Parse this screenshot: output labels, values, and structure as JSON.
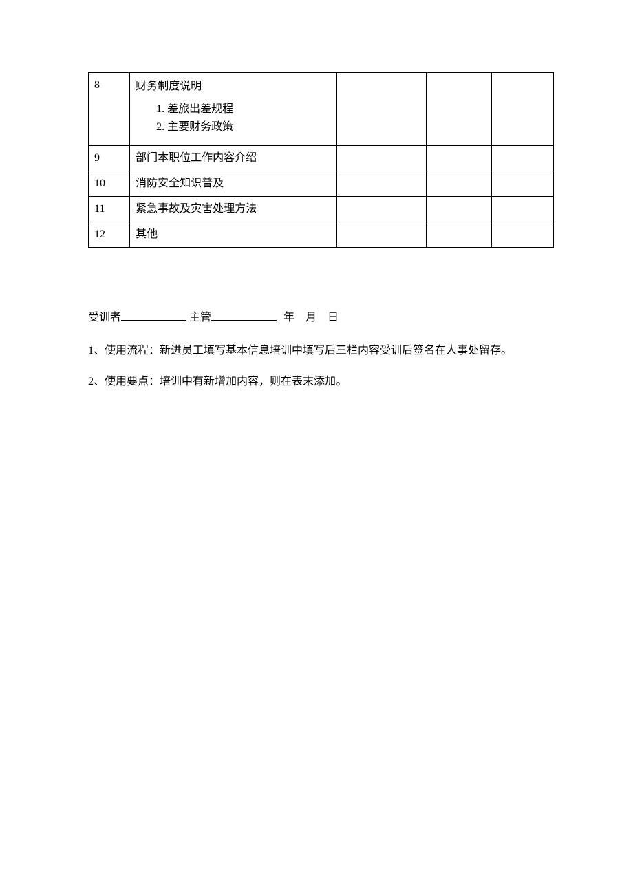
{
  "table": {
    "columns": {
      "num_width": 60,
      "content_width": 300,
      "blank1_width": 130,
      "blank2_width": 95,
      "blank3_width": 90
    },
    "border_color": "#000000",
    "background_color": "#ffffff",
    "text_color": "#000000",
    "font_size": 16,
    "rows": [
      {
        "num": "8",
        "content_title": "财务制度说明",
        "content_list": [
          "差旅出差规程",
          "主要财务政策"
        ]
      },
      {
        "num": "9",
        "content": "部门本职位工作内容介绍"
      },
      {
        "num": "10",
        "content": "消防安全知识普及"
      },
      {
        "num": "11",
        "content": "紧急事故及灾害处理方法"
      },
      {
        "num": "12",
        "content": "其他"
      }
    ]
  },
  "signature": {
    "trainee_label": "受训者",
    "supervisor_label": " 主管",
    "date_label": " 年 月 日"
  },
  "notes": {
    "note1": "1、使用流程：新进员工填写基本信息培训中填写后三栏内容受训后签名在人事处留存。",
    "note2": "2、使用要点：培训中有新增加内容，则在表末添加。"
  }
}
